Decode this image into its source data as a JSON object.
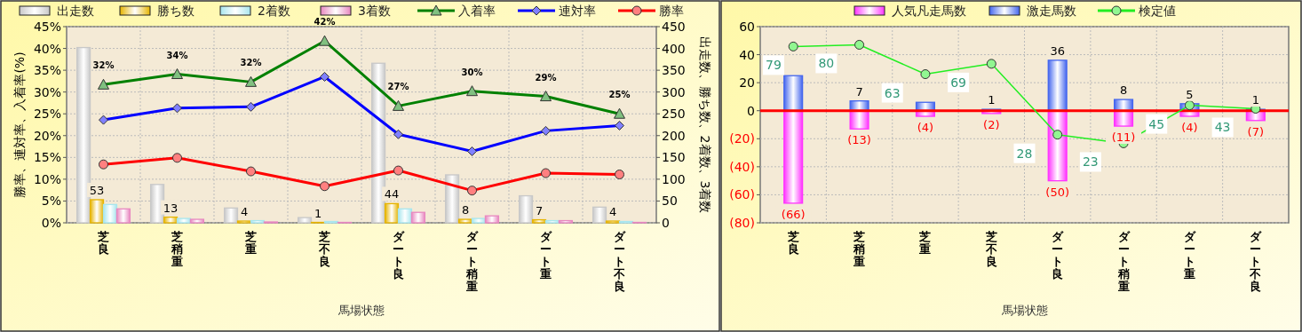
{
  "chart_data": [
    {
      "type": "bar",
      "categories": [
        "芝良",
        "芝稍重",
        "芝重",
        "芝不良",
        "ダート良",
        "ダート稍重",
        "ダート重",
        "ダート不良"
      ],
      "xlabel": "馬場状態",
      "ylabel": "勝率、連対率、入着率(%)",
      "y2label": "出走数、勝ち数、2着数、3着数",
      "ylim": [
        0,
        45
      ],
      "yticks": [
        {
          "value": 0,
          "label": "0%"
        },
        {
          "value": 5,
          "label": "5%"
        },
        {
          "value": 10,
          "label": "10%"
        },
        {
          "value": 15,
          "label": "15%"
        },
        {
          "value": 20,
          "label": "20%"
        },
        {
          "value": 25,
          "label": "25%"
        },
        {
          "value": 30,
          "label": "30%"
        },
        {
          "value": 35,
          "label": "35%"
        },
        {
          "value": 40,
          "label": "40%"
        },
        {
          "value": 45,
          "label": "45%"
        }
      ],
      "y2lim": [
        0,
        450
      ],
      "y2ticks": [
        0,
        50,
        100,
        150,
        200,
        250,
        300,
        350,
        400,
        450
      ],
      "grid": true,
      "legend": "top",
      "series": [
        {
          "name": "出走数",
          "color": "#c8c8c8",
          "axis": "y2",
          "values": [
            402,
            88,
            34,
            12,
            366,
            110,
            62,
            36
          ]
        },
        {
          "name": "勝ち数",
          "color": "#e6b400",
          "axis": "y2",
          "values": [
            53,
            13,
            4,
            1,
            44,
            8,
            7,
            4
          ],
          "value_labels": [
            "53",
            "13",
            "4",
            "1",
            "44",
            "8",
            "7",
            "4"
          ]
        },
        {
          "name": "2着数",
          "color": "#a8e6ee",
          "axis": "y2",
          "values": [
            42,
            10,
            5,
            3,
            32,
            10,
            5,
            3
          ]
        },
        {
          "name": "3着数",
          "color": "#e888c0",
          "axis": "y2",
          "values": [
            32,
            8,
            2,
            1,
            24,
            16,
            5,
            1
          ]
        },
        {
          "name": "入着率",
          "type": "line",
          "color": "#008000",
          "marker": "triangle",
          "values": [
            31.7,
            34.1,
            32.3,
            41.7,
            26.8,
            30.2,
            29.0,
            25.0
          ],
          "value_labels": [
            "32%",
            "34%",
            "32%",
            "42%",
            "27%",
            "30%",
            "29%",
            "25%"
          ]
        },
        {
          "name": "連対率",
          "type": "line",
          "color": "#0000ff",
          "marker": "diamond",
          "values": [
            23.6,
            26.3,
            26.6,
            33.5,
            20.3,
            16.4,
            21.1,
            22.3
          ]
        },
        {
          "name": "勝率",
          "type": "line",
          "color": "#ff0000",
          "marker": "circle",
          "values": [
            13.4,
            14.9,
            11.8,
            8.4,
            12.0,
            7.4,
            11.4,
            11.1
          ]
        }
      ]
    },
    {
      "type": "bar",
      "stacked": true,
      "categories": [
        "芝良",
        "芝稍重",
        "芝重",
        "芝不良",
        "ダート良",
        "ダート稍重",
        "ダート重",
        "ダート不良"
      ],
      "xlabel": "馬場状態",
      "ylim": [
        -80,
        60
      ],
      "yticks": [
        {
          "value": -80,
          "label": "(80)"
        },
        {
          "value": -60,
          "label": "(60)"
        },
        {
          "value": -40,
          "label": "(40)"
        },
        {
          "value": -20,
          "label": "(20)"
        },
        0,
        20,
        40,
        60
      ],
      "y2lim": [
        -23,
        90.5
      ],
      "grid": true,
      "legend": "top",
      "ref_lines": [
        {
          "axis": "y",
          "value": 0,
          "color": "#ff0000"
        }
      ],
      "series": [
        {
          "name": "人気凡走馬数",
          "color": "#ff33ff",
          "values": [
            -66,
            -13,
            -4,
            -2,
            -50,
            -11,
            -4,
            -7
          ],
          "value_labels": [
            "(66)",
            "(13)",
            "(4)",
            "(2)",
            "(50)",
            "(11)",
            "(4)",
            "(7)"
          ]
        },
        {
          "name": "激走馬数",
          "color": "#4466ee",
          "values": [
            25,
            7,
            6,
            1,
            36,
            8,
            5,
            1
          ],
          "value_labels": [
            null,
            "7",
            null,
            "1",
            "36",
            "8",
            "5",
            "1"
          ]
        },
        {
          "name": "検定値",
          "type": "line",
          "color": "#22ee22",
          "marker": "circle",
          "axis": "y2",
          "values": [
            79,
            80,
            63,
            69,
            28,
            23,
            45,
            43
          ],
          "value_labels": [
            "79",
            "80",
            "63",
            "69",
            "28",
            "23",
            "45",
            "43"
          ]
        }
      ]
    }
  ]
}
